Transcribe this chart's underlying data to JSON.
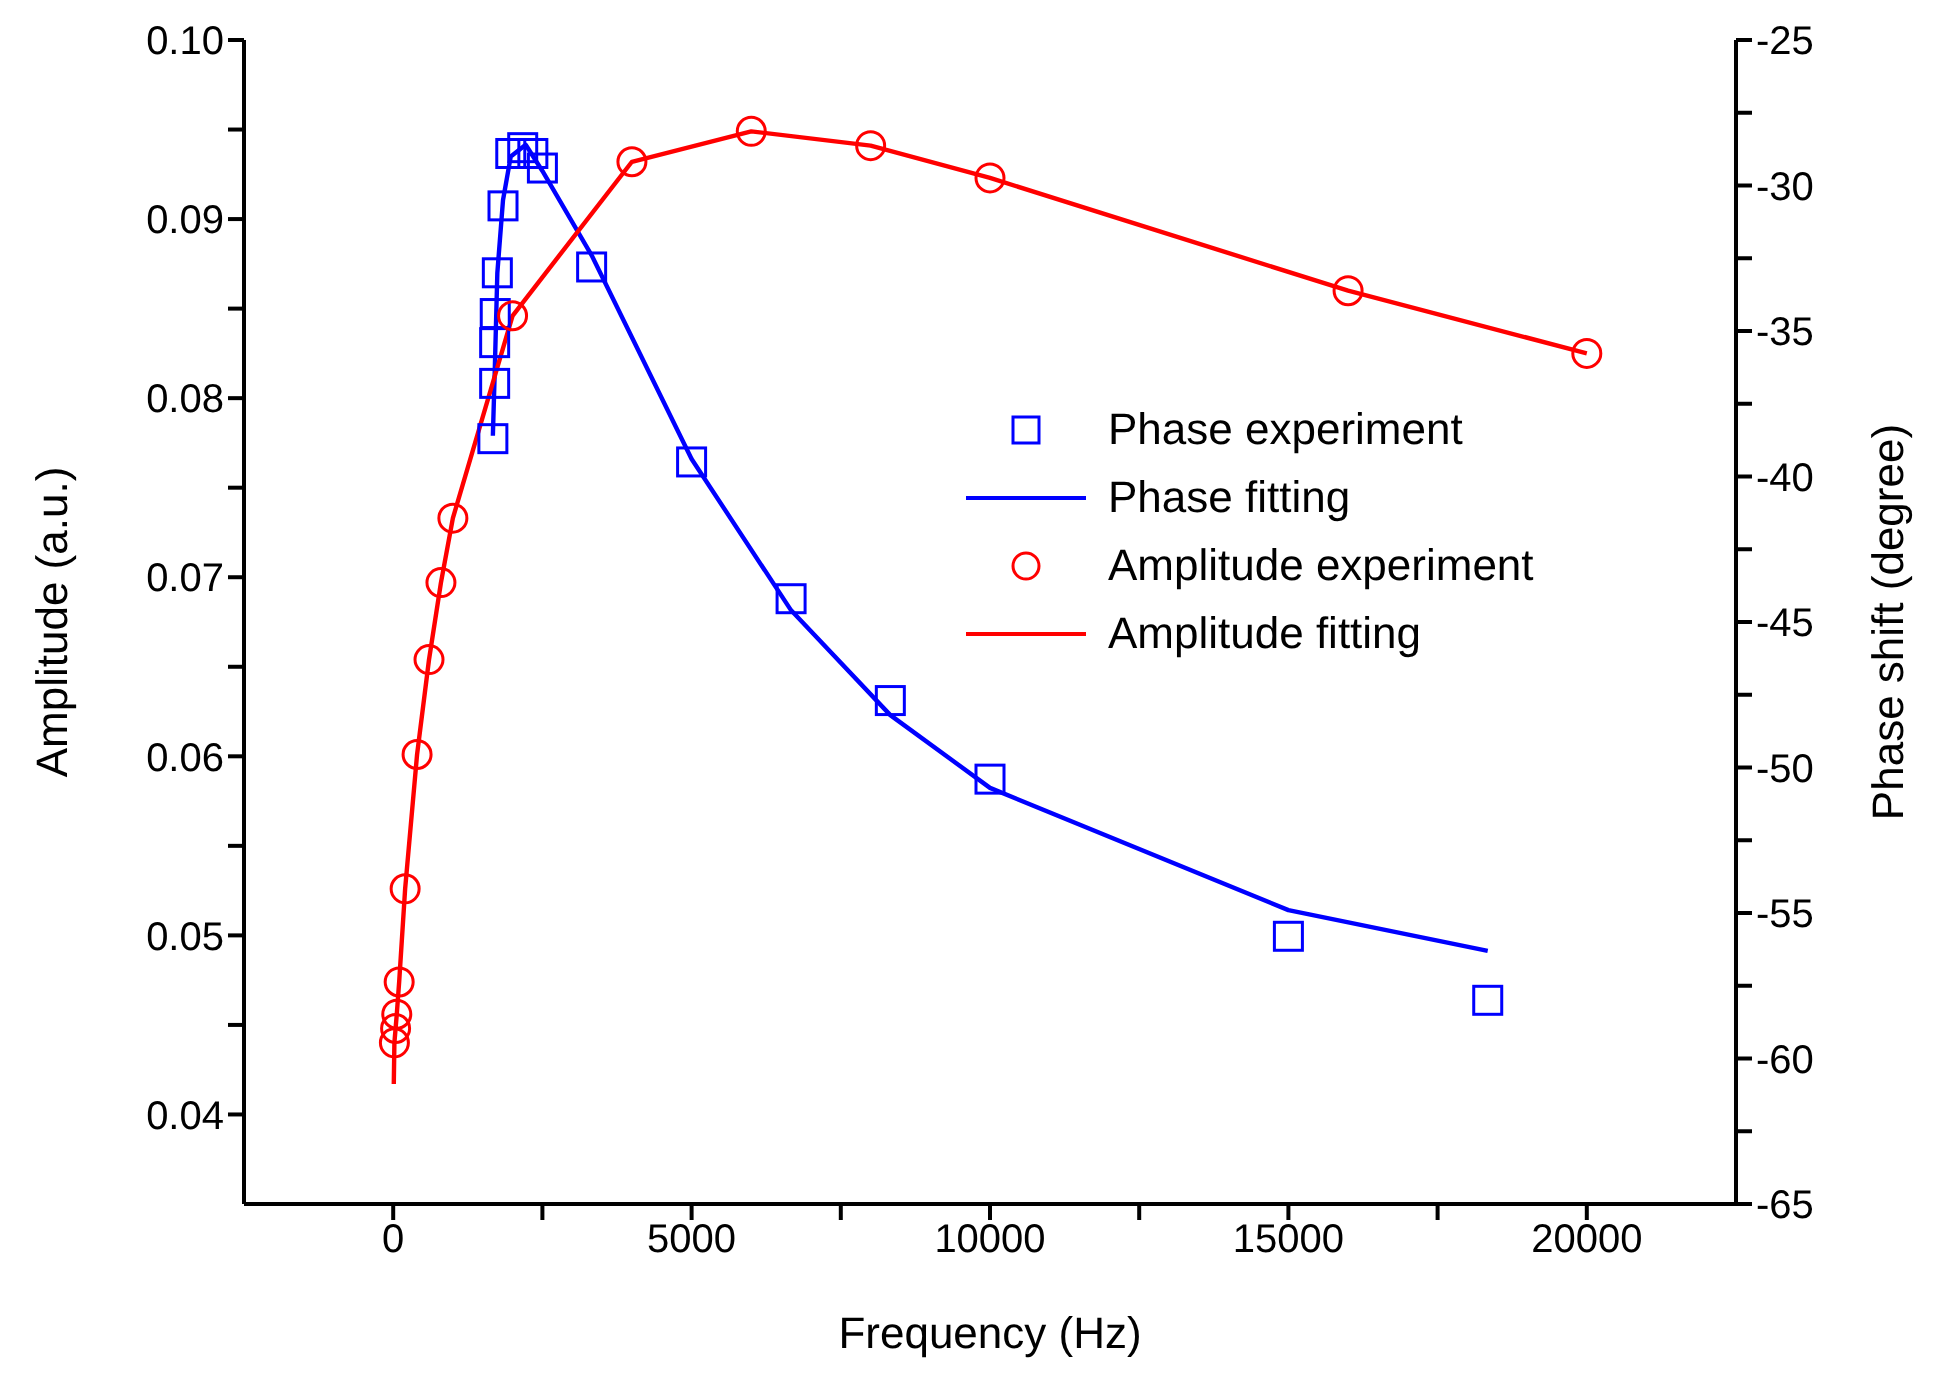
{
  "chart_data": {
    "type": "scatter",
    "xlabel": "Frequency (Hz)",
    "ylabel": "Amplitude (a.u.)",
    "y2label": "Phase shift (degree)",
    "xlim": [
      -2500,
      22500
    ],
    "xticks": [
      0,
      {
        "value": 2500,
        "label": null
      },
      5000,
      {
        "value": 7500,
        "label": null
      },
      10000,
      {
        "value": 12500,
        "label": null
      },
      15000,
      {
        "value": 17500,
        "label": null
      },
      20000
    ],
    "ylim": [
      0.035,
      0.1
    ],
    "yticks": [
      0.04,
      {
        "value": 0.045,
        "label": null
      },
      0.05,
      {
        "value": 0.055,
        "label": null
      },
      0.06,
      {
        "value": 0.065,
        "label": null
      },
      0.07,
      {
        "value": 0.075,
        "label": null
      },
      0.08,
      {
        "value": 0.085,
        "label": null
      },
      0.09,
      {
        "value": 0.095,
        "label": null
      },
      {
        "value": 0.1,
        "label": "0.10"
      }
    ],
    "y2lim": [
      -65,
      -25
    ],
    "y2ticks": [
      -65,
      {
        "value": -62.5,
        "label": null
      },
      -60,
      {
        "value": -57.5,
        "label": null
      },
      -55,
      {
        "value": -52.5,
        "label": null
      },
      -50,
      {
        "value": -47.5,
        "label": null
      },
      -45,
      {
        "value": -42.5,
        "label": null
      },
      -40,
      {
        "value": -37.5,
        "label": null
      },
      -35,
      {
        "value": -32.5,
        "label": null
      },
      -30,
      {
        "value": -27.5,
        "label": null
      },
      -25
    ],
    "legend": "right",
    "grid": false,
    "series": [
      {
        "name": "Phase experiment",
        "marker": "square",
        "axis": "y2",
        "color": "#0000ff",
        "x": [
          1670,
          1700,
          1700,
          1710,
          1745,
          1840,
          1970,
          2170,
          2340,
          2500,
          3325,
          5000,
          6667,
          8330,
          10000,
          15000,
          18340
        ],
        "values": [
          -38.7,
          -36.8,
          -35.4,
          -34.4,
          -33.0,
          -30.7,
          -28.9,
          -28.7,
          -28.9,
          -29.4,
          -32.8,
          -39.5,
          -44.2,
          -47.7,
          -50.4,
          -55.8,
          -58.0
        ]
      },
      {
        "name": "Phase fitting",
        "type": "line",
        "marker": "none",
        "axis": "y2",
        "color": "#0000ff",
        "x": [
          1670,
          1700,
          1745,
          1840,
          1970,
          2220,
          2500,
          3325,
          5000,
          6667,
          8330,
          10000,
          15000,
          18340
        ],
        "values": [
          -38.6,
          -36.5,
          -33.0,
          -30.5,
          -29.0,
          -28.6,
          -29.5,
          -32.4,
          -39.4,
          -44.6,
          -48.2,
          -50.7,
          -54.9,
          -56.3
        ]
      },
      {
        "name": "Amplitude experiment",
        "marker": "circle",
        "color": "#ff0000",
        "x": [
          20,
          40,
          60,
          100,
          200,
          400,
          600,
          800,
          1000,
          2000,
          4000,
          6000,
          8000,
          10000,
          16000,
          20000
        ],
        "values": [
          0.044,
          0.0448,
          0.0456,
          0.0474,
          0.0526,
          0.0601,
          0.0654,
          0.0697,
          0.0733,
          0.0846,
          0.0932,
          0.0949,
          0.0941,
          0.0923,
          0.086,
          0.0825
        ]
      },
      {
        "name": "Amplitude fitting",
        "type": "line",
        "marker": "none",
        "color": "#ff0000",
        "x": [
          10,
          20,
          40,
          60,
          100,
          200,
          400,
          600,
          800,
          1000,
          2000,
          4000,
          6000,
          8000,
          10000,
          16000,
          20000
        ],
        "values": [
          0.0417,
          0.044,
          0.0448,
          0.0456,
          0.0474,
          0.0526,
          0.0601,
          0.0654,
          0.0697,
          0.0733,
          0.0846,
          0.0932,
          0.0949,
          0.0941,
          0.0923,
          0.086,
          0.0825
        ]
      }
    ]
  }
}
